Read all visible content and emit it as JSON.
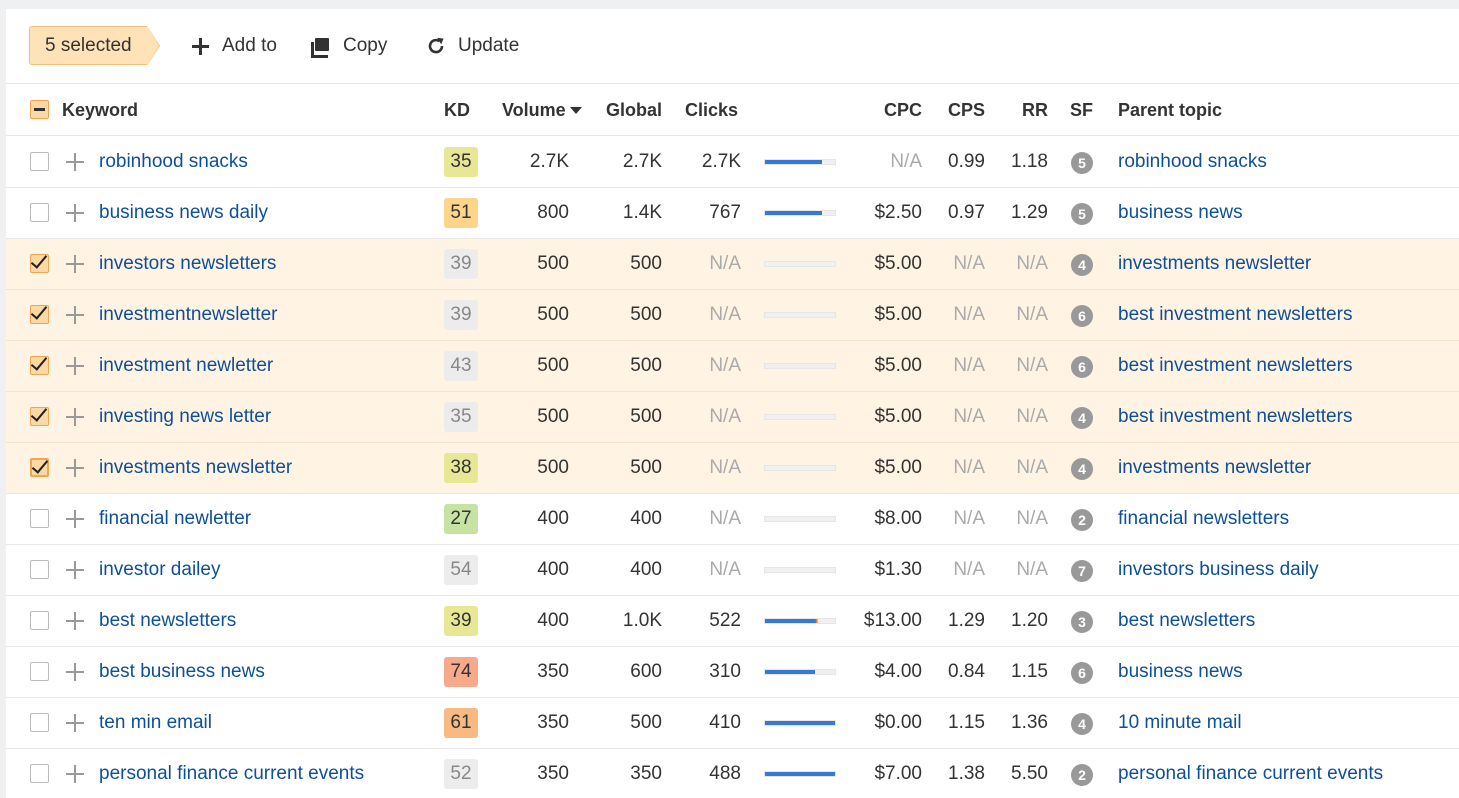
{
  "toolbar": {
    "selected_label": "5 selected",
    "add_label": "Add to",
    "copy_label": "Copy",
    "update_label": "Update"
  },
  "columns": {
    "keyword": "Keyword",
    "kd": "KD",
    "volume": "Volume",
    "global": "Global",
    "clicks": "Clicks",
    "cpc": "CPC",
    "cps": "CPS",
    "rr": "RR",
    "sf": "SF",
    "parent": "Parent topic"
  },
  "colors": {
    "kd_green": "#c7e3a4",
    "kd_yellow": "#e7e796",
    "kd_orange": "#fcd58a",
    "kd_deep_orange": "#f9b983",
    "kd_red_orange": "#f7a98b",
    "kd_gray": "#ececec",
    "link": "#0e4f9a",
    "bar_blue": "#3579d4"
  },
  "rows": [
    {
      "keyword": "robinhood snacks",
      "kd": "35",
      "kd_color": "#e7e796",
      "volume": "2.7K",
      "global": "2.7K",
      "clicks": "2.7K",
      "clicks_bar_fraction": 0.82,
      "cpc": "N/A",
      "cps": "0.99",
      "rr": "1.18",
      "sf": "5",
      "parent": "robinhood snacks",
      "selected": false,
      "focused": false
    },
    {
      "keyword": "business news daily",
      "kd": "51",
      "kd_color": "#fcd58a",
      "volume": "800",
      "global": "1.4K",
      "clicks": "767",
      "clicks_bar_fraction": 0.82,
      "cpc": "$2.50",
      "cps": "0.97",
      "rr": "1.29",
      "sf": "5",
      "parent": "business news",
      "selected": false,
      "focused": false
    },
    {
      "keyword": "investors newsletters",
      "kd": "39",
      "kd_color": "#ececec",
      "volume": "500",
      "global": "500",
      "clicks": "N/A",
      "clicks_bar_fraction": 0,
      "cpc": "$5.00",
      "cps": "N/A",
      "rr": "N/A",
      "sf": "4",
      "parent": "investments newsletter",
      "selected": true,
      "focused": false
    },
    {
      "keyword": "investmentnewsletter",
      "kd": "39",
      "kd_color": "#ececec",
      "volume": "500",
      "global": "500",
      "clicks": "N/A",
      "clicks_bar_fraction": 0,
      "cpc": "$5.00",
      "cps": "N/A",
      "rr": "N/A",
      "sf": "6",
      "parent": "best investment newsletters",
      "selected": true,
      "focused": false
    },
    {
      "keyword": "investment newletter",
      "kd": "43",
      "kd_color": "#ececec",
      "volume": "500",
      "global": "500",
      "clicks": "N/A",
      "clicks_bar_fraction": 0,
      "cpc": "$5.00",
      "cps": "N/A",
      "rr": "N/A",
      "sf": "6",
      "parent": "best investment newsletters",
      "selected": true,
      "focused": false
    },
    {
      "keyword": "investing news letter",
      "kd": "35",
      "kd_color": "#ececec",
      "volume": "500",
      "global": "500",
      "clicks": "N/A",
      "clicks_bar_fraction": 0,
      "cpc": "$5.00",
      "cps": "N/A",
      "rr": "N/A",
      "sf": "4",
      "parent": "best investment newsletters",
      "selected": true,
      "focused": false
    },
    {
      "keyword": "investments newsletter",
      "kd": "38",
      "kd_color": "#e7e796",
      "volume": "500",
      "global": "500",
      "clicks": "N/A",
      "clicks_bar_fraction": 0,
      "cpc": "$5.00",
      "cps": "N/A",
      "rr": "N/A",
      "sf": "4",
      "parent": "investments newsletter",
      "selected": true,
      "focused": true
    },
    {
      "keyword": "financial newletter",
      "kd": "27",
      "kd_color": "#c7e3a4",
      "volume": "400",
      "global": "400",
      "clicks": "N/A",
      "clicks_bar_fraction": 0,
      "cpc": "$8.00",
      "cps": "N/A",
      "rr": "N/A",
      "sf": "2",
      "parent": "financial newsletters",
      "selected": false,
      "focused": false
    },
    {
      "keyword": "investor dailey",
      "kd": "54",
      "kd_color": "#ececec",
      "volume": "400",
      "global": "400",
      "clicks": "N/A",
      "clicks_bar_fraction": 0,
      "cpc": "$1.30",
      "cps": "N/A",
      "rr": "N/A",
      "sf": "7",
      "parent": "investors business daily",
      "selected": false,
      "focused": false
    },
    {
      "keyword": "best newsletters",
      "kd": "39",
      "kd_color": "#e7e796",
      "volume": "400",
      "global": "1.0K",
      "clicks": "522",
      "clicks_bar_fraction": 0.72,
      "cpc": "$13.00",
      "cps": "1.29",
      "rr": "1.20",
      "sf": "3",
      "parent": "best newsletters",
      "selected": false,
      "focused": false,
      "bar_accent": true
    },
    {
      "keyword": "best business news",
      "kd": "74",
      "kd_color": "#f7a98b",
      "volume": "350",
      "global": "600",
      "clicks": "310",
      "clicks_bar_fraction": 0.72,
      "cpc": "$4.00",
      "cps": "0.84",
      "rr": "1.15",
      "sf": "6",
      "parent": "business news",
      "selected": false,
      "focused": false
    },
    {
      "keyword": "ten min email",
      "kd": "61",
      "kd_color": "#f9b983",
      "volume": "350",
      "global": "500",
      "clicks": "410",
      "clicks_bar_fraction": 1.0,
      "cpc": "$0.00",
      "cps": "1.15",
      "rr": "1.36",
      "sf": "4",
      "parent": "10 minute mail",
      "selected": false,
      "focused": false
    },
    {
      "keyword": "personal finance current events",
      "kd": "52",
      "kd_color": "#ececec",
      "volume": "350",
      "global": "350",
      "clicks": "488",
      "clicks_bar_fraction": 1.0,
      "cpc": "$7.00",
      "cps": "1.38",
      "rr": "5.50",
      "sf": "2",
      "parent": "personal finance current events",
      "selected": false,
      "focused": false
    }
  ]
}
